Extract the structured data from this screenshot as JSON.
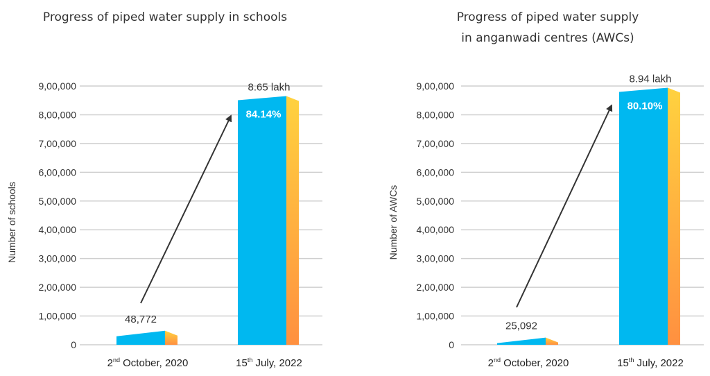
{
  "chart_data": [
    {
      "type": "bar",
      "title_lines": [
        "Progress of piped water supply in schools"
      ],
      "xlabel": "",
      "ylabel": "Number of schools",
      "ylim": [
        0,
        900000
      ],
      "yticks": [
        0,
        100000,
        200000,
        300000,
        400000,
        500000,
        600000,
        700000,
        800000,
        900000
      ],
      "ytick_labels": [
        "0",
        "1,00,000",
        "2,00,000",
        "3,00,000",
        "4,00,000",
        "5,00,000",
        "6,00,000",
        "7,00,000",
        "8,00,000",
        "9,00,000"
      ],
      "categories": [
        {
          "main": "2",
          "sup": "nd",
          "rest": " October, 2020"
        },
        {
          "main": "15",
          "sup": "th",
          "rest": " July, 2022"
        }
      ],
      "values": [
        48772,
        865000
      ],
      "data_labels": [
        "48,772",
        "8.65 lakh"
      ],
      "percent_label": "84.14%",
      "grid": true
    },
    {
      "type": "bar",
      "title_lines": [
        "Progress of piped water supply",
        "in anganwadi centres (AWCs)"
      ],
      "xlabel": "",
      "ylabel": "Number of AWCs",
      "ylim": [
        0,
        900000
      ],
      "yticks": [
        0,
        100000,
        200000,
        300000,
        400000,
        500000,
        600000,
        700000,
        800000,
        900000
      ],
      "ytick_labels": [
        "0",
        "1,00,000",
        "2,00,000",
        "3,00,000",
        "4,00,000",
        "5,00,000",
        "6,00,000",
        "7,00,000",
        "8,00,000",
        "9,00,000"
      ],
      "categories": [
        {
          "main": "2",
          "sup": "nd",
          "rest": " October, 2020"
        },
        {
          "main": "15",
          "sup": "th",
          "rest": " July, 2022"
        }
      ],
      "values": [
        25092,
        894000
      ],
      "data_labels": [
        "25,092",
        "8.94 lakh"
      ],
      "percent_label": "80.10%",
      "grid": true
    }
  ],
  "colors": {
    "bar_front": "#00b8f0",
    "side_top": "#ffd23f",
    "side_bottom": "#ff9040",
    "grid": "#cfcfcf",
    "arrow": "#333333"
  }
}
